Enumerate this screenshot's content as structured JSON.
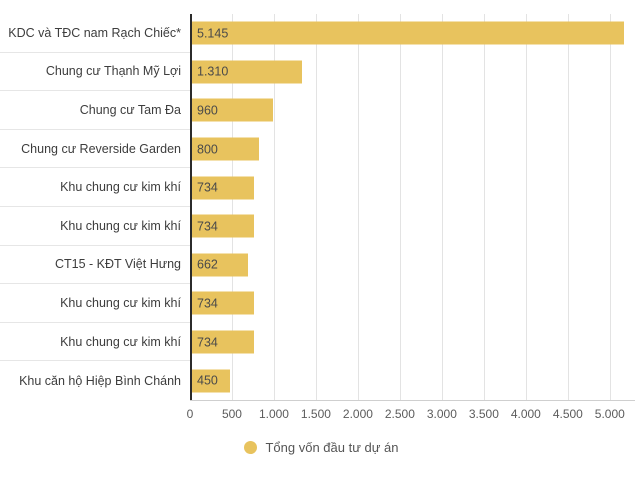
{
  "chart_data": {
    "type": "bar",
    "orientation": "horizontal",
    "title": "",
    "categories": [
      "KDC và TĐC nam Rạch Chiếc*",
      "Chung cư Thạnh Mỹ Lợi",
      "Chung cư Tam Đa",
      "Chung cư Reverside Garden",
      "Khu chung cư kim khí",
      "Khu chung cư kim khí",
      "CT15 - KĐT Việt Hưng",
      "Khu chung cư kim khí",
      "Khu chung cư kim khí",
      "Khu căn hộ Hiệp Bình Chánh"
    ],
    "values": [
      5145,
      1310,
      960,
      800,
      734,
      734,
      662,
      734,
      734,
      450
    ],
    "value_labels": [
      "5.145",
      "1.310",
      "960",
      "800",
      "734",
      "734",
      "662",
      "734",
      "734",
      "450"
    ],
    "x_ticks": [
      "0",
      "500",
      "1.000",
      "1.500",
      "2.000",
      "2.500",
      "3.000",
      "3.500",
      "4.000",
      "4.500",
      "5.000"
    ],
    "x_tick_values": [
      0,
      500,
      1000,
      1500,
      2000,
      2500,
      3000,
      3500,
      4000,
      4500,
      5000
    ],
    "xlim": [
      0,
      5300
    ],
    "grid": true,
    "legend": "Tổng vốn đầu tư dự án",
    "legend_position": "bottom-center",
    "bar_color": "#e8c35e",
    "axis_color": "#2b2b2b",
    "gridline_color": "#e3e3e3"
  }
}
